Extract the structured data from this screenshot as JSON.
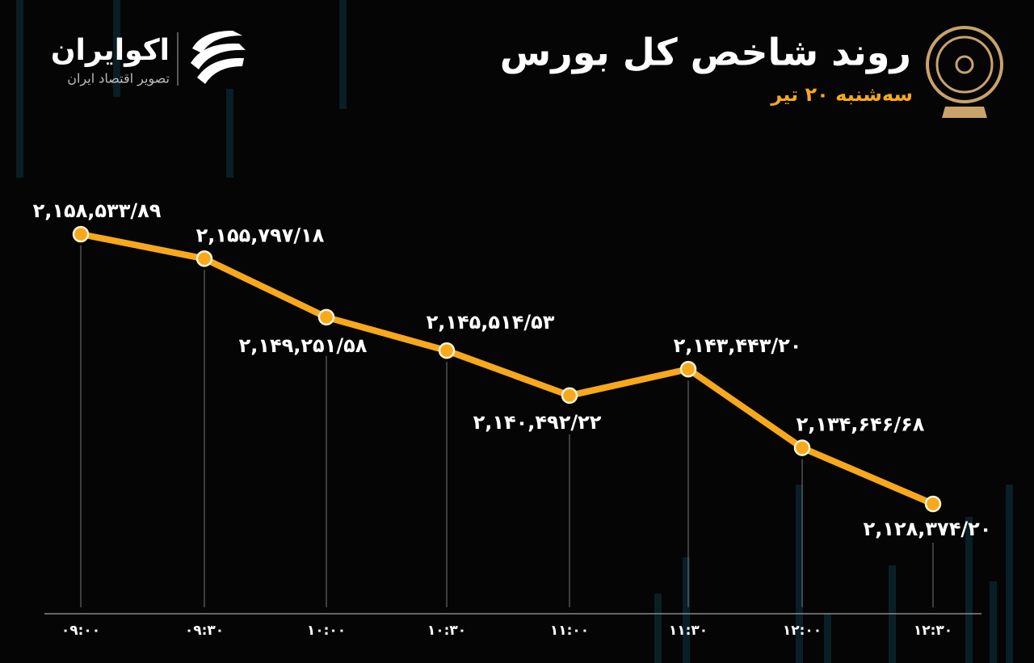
{
  "brand": {
    "name": "اکوایران",
    "tagline": "تصویر اقتصاد ایران"
  },
  "chart_data": {
    "type": "line",
    "title": "روند شاخص کل بورس",
    "subtitle": "سه‌شنبه ۲۰ تیر",
    "categories": [
      "۰۹:۰۰",
      "۰۹:۳۰",
      "۱۰:۰۰",
      "۱۰:۳۰",
      "۱۱:۰۰",
      "۱۱:۳۰",
      "۱۲:۰۰",
      "۱۲:۳۰"
    ],
    "values": [
      2158533.89,
      2155797.18,
      2149251.58,
      2145514.53,
      2140492.22,
      2143443.2,
      2134646.68,
      2128374.2
    ],
    "value_labels": [
      "۲,۱۵۸,۵۳۳/۸۹",
      "۲,۱۵۵,۷۹۷/۱۸",
      "۲,۱۴۹,۲۵۱/۵۸",
      "۲,۱۴۵,۵۱۴/۵۳",
      "۲,۱۴۰,۴۹۲/۲۲",
      "۲,۱۴۳,۴۴۳/۲۰",
      "۲,۱۳۴,۶۴۶/۶۸",
      "۲,۱۲۸,۳۷۴/۲۰"
    ],
    "color": "#f7a81b"
  }
}
